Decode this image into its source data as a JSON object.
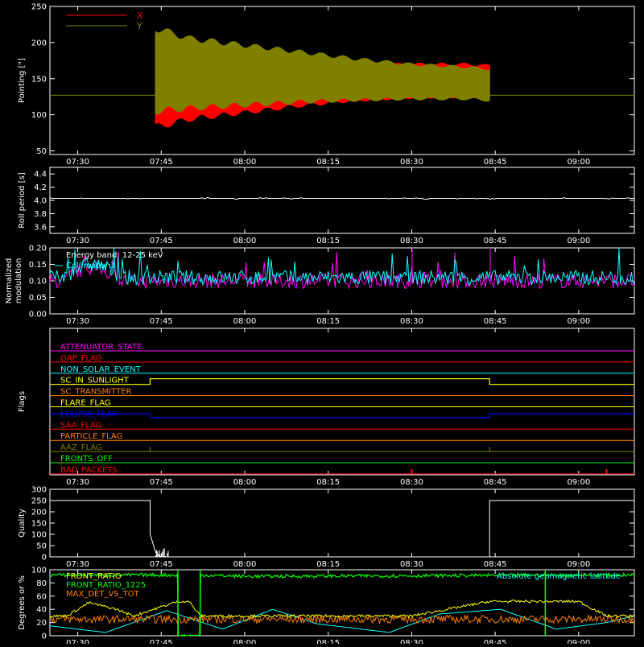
{
  "colors": {
    "background": "#000000",
    "axes": "#ffffff",
    "red": "#ff0000",
    "olive": "#808000",
    "magenta": "#ff00ff",
    "cyan": "#00ffff",
    "orange": "#ff8000",
    "yellow": "#ffff00",
    "blue": "#0000ff",
    "green": "#00ff00",
    "gray": "#808080"
  },
  "time_ticks": [
    "07:30",
    "07:45",
    "08:00",
    "08:15",
    "08:30",
    "08:45",
    "09:00"
  ],
  "chart_data": [
    {
      "id": "pointing",
      "type": "line",
      "ylabel": "Pointing [\"]",
      "xlim": [
        "07:25",
        "09:10"
      ],
      "ylim": [
        45,
        250
      ],
      "yticks": [
        50,
        100,
        150,
        200,
        250
      ],
      "grid": false,
      "legend": "top-left",
      "series": [
        {
          "name": "X",
          "color": "red",
          "x": [
            "07:25",
            "07:43",
            "07:44",
            "07:50",
            "08:00",
            "08:10",
            "08:20",
            "08:30",
            "08:40",
            "08:44",
            "09:10"
          ],
          "y_min": [
            127,
            127,
            78,
            90,
            100,
            110,
            118,
            122,
            123,
            123,
            127
          ],
          "y_max": [
            127,
            127,
            200,
            190,
            180,
            175,
            172,
            172,
            172,
            170,
            127
          ]
        },
        {
          "name": "Y",
          "color": "olive",
          "x": [
            "07:25",
            "07:43",
            "07:44",
            "07:50",
            "08:00",
            "08:10",
            "08:20",
            "08:30",
            "08:40",
            "08:44",
            "09:10"
          ],
          "y_min": [
            127,
            127,
            100,
            105,
            110,
            115,
            118,
            120,
            120,
            118,
            127
          ],
          "y_max": [
            127,
            127,
            225,
            210,
            200,
            190,
            180,
            172,
            168,
            165,
            127
          ]
        }
      ]
    },
    {
      "id": "roll",
      "type": "line",
      "ylabel": "Roll period [s]",
      "xlim": [
        "07:25",
        "09:10"
      ],
      "ylim": [
        3.5,
        4.5
      ],
      "yticks": [
        3.6,
        3.8,
        4.0,
        4.2,
        4.4
      ],
      "grid": false,
      "series": [
        {
          "color": "axes",
          "x": [
            "07:25",
            "09:10"
          ],
          "y": [
            4.03,
            4.03
          ]
        }
      ]
    },
    {
      "id": "modulation",
      "type": "line",
      "ylabel": "Normalized modulation",
      "xlim": [
        "07:25",
        "09:10"
      ],
      "ylim": [
        0.0,
        0.2
      ],
      "yticks": [
        0.0,
        0.05,
        0.1,
        0.15,
        0.2
      ],
      "grid": false,
      "legend": "top-left",
      "annotation": "Energy band: 12-25 keV",
      "series": [
        {
          "name": "Collimator 3",
          "color": "cyan",
          "x": [
            "07:25",
            "09:10"
          ],
          "y": [
            0.11,
            0.11
          ]
        },
        {
          "color": "magenta",
          "x": [
            "07:25",
            "09:10"
          ],
          "y": [
            0.1,
            0.1
          ]
        }
      ]
    },
    {
      "id": "flags",
      "type": "line",
      "ylabel": "Flags",
      "xlim": [
        "07:25",
        "09:10"
      ],
      "grid": false,
      "series": [
        {
          "name": "ATTENUATOR_STATE",
          "color": "magenta",
          "transitions": []
        },
        {
          "name": "GAP_FLAG",
          "color": "red",
          "transitions": []
        },
        {
          "name": "NON_SOLAR_EVENT",
          "color": "cyan",
          "transitions": []
        },
        {
          "name": "SC_IN_SUNLIGHT",
          "color": "yellow",
          "high": [
            [
              "07:25",
              "07:43"
            ],
            [
              "08:44",
              "09:10"
            ]
          ],
          "default": "low"
        },
        {
          "name": "SC_TRANSMITTER",
          "color": "orange",
          "transitions": []
        },
        {
          "name": "FLARE_FLAG",
          "color": "yellow",
          "transitions": []
        },
        {
          "name": "ECLIPSE_FLAG",
          "color": "blue",
          "high": [
            [
              "07:25",
              "07:43"
            ],
            [
              "08:44",
              "09:10"
            ]
          ],
          "default": "low"
        },
        {
          "name": "SAA_FLAG",
          "color": "red",
          "transitions": []
        },
        {
          "name": "PARTICLE_FLAG",
          "color": "orange",
          "transitions": []
        },
        {
          "name": "AAZ_FLAG",
          "color": "olive",
          "spikes": [
            "07:43",
            "08:44"
          ]
        },
        {
          "name": "FRONTS_OFF",
          "color": "green",
          "transitions": []
        },
        {
          "name": "BAD_PACKETS",
          "color": "red",
          "spikes": [
            "08:30",
            "09:05"
          ]
        }
      ]
    },
    {
      "id": "quality",
      "type": "line",
      "ylabel": "Quality",
      "xlim": [
        "07:25",
        "09:10"
      ],
      "ylim": [
        0,
        300
      ],
      "yticks": [
        0,
        50,
        100,
        150,
        200,
        250,
        300
      ],
      "grid": false,
      "series": [
        {
          "color": "axes",
          "x": [
            "07:25",
            "07:43",
            "07:43",
            "07:44",
            "07:45",
            "08:44",
            "08:44",
            "09:10"
          ],
          "y": [
            250,
            250,
            100,
            20,
            0,
            0,
            250,
            250
          ]
        }
      ]
    },
    {
      "id": "orbit",
      "type": "line",
      "ylabel": "Degrees or %",
      "xlim": [
        "07:25",
        "09:10"
      ],
      "ylim": [
        0,
        100
      ],
      "yticks": [
        0,
        20,
        40,
        60,
        80,
        100
      ],
      "grid": false,
      "legend": "top-left",
      "series": [
        {
          "name": "FRONT_RATIO",
          "color": "yellow",
          "x": [
            "07:25",
            "07:28",
            "07:32",
            "07:37",
            "07:40",
            "07:48",
            "07:50",
            "07:52",
            "08:00",
            "08:10",
            "08:20",
            "08:30",
            "08:44",
            "08:50",
            "09:00",
            "09:05",
            "09:10"
          ],
          "y": [
            30,
            30,
            50,
            40,
            30,
            52,
            52,
            30,
            30,
            30,
            30,
            30,
            52,
            52,
            52,
            30,
            30
          ]
        },
        {
          "name": "FRONT_RATIO_1225",
          "color": "green",
          "x": [
            "07:25",
            "07:48",
            "07:48",
            "07:52",
            "07:52",
            "08:00",
            "09:00",
            "09:10"
          ],
          "y": [
            92,
            92,
            0,
            0,
            92,
            90,
            92,
            92
          ]
        },
        {
          "name": "MAX_DET_VS_TOT",
          "color": "orange",
          "x": [
            "07:25",
            "09:10"
          ],
          "y": [
            25,
            25
          ]
        },
        {
          "name": "Absolute geomagnetic latitude",
          "color": "cyan",
          "x": [
            "07:25",
            "07:35",
            "07:46",
            "07:56",
            "08:05",
            "08:13",
            "08:26",
            "08:35",
            "08:46",
            "08:56",
            "09:05",
            "09:10"
          ],
          "y": [
            15,
            5,
            38,
            10,
            40,
            18,
            5,
            33,
            40,
            10,
            20,
            30
          ]
        }
      ]
    }
  ]
}
